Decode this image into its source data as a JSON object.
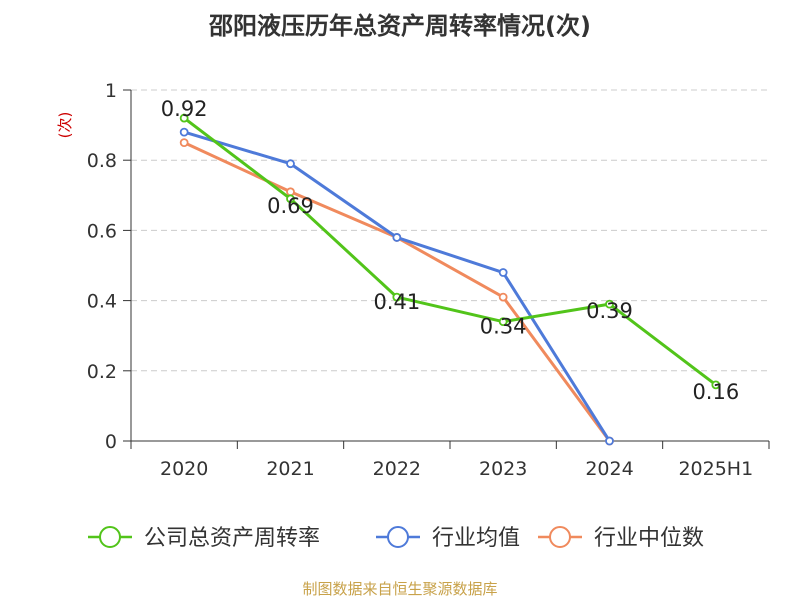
{
  "chart_data": {
    "type": "line",
    "title": "邵阳液压历年总资产周转率情况(次)",
    "ylabel": "(次)",
    "categories": [
      "2020",
      "2021",
      "2022",
      "2023",
      "2024",
      "2025H1"
    ],
    "ylim": [
      0,
      1
    ],
    "yticks": [
      "0",
      "0.2",
      "0.4",
      "0.6",
      "0.8",
      "1"
    ],
    "grid": true,
    "legend_position": "bottom",
    "series": [
      {
        "name": "公司总资产周转率",
        "color": "#52c41a",
        "values": [
          0.92,
          0.69,
          0.41,
          0.34,
          0.39,
          0.16
        ],
        "labels": [
          "0.92",
          "0.69",
          "0.41",
          "0.34",
          "0.39",
          "0.16"
        ]
      },
      {
        "name": "行业均值",
        "color": "#4e7ad9",
        "values": [
          0.88,
          0.79,
          0.58,
          0.48,
          0,
          null
        ]
      },
      {
        "name": "行业中位数",
        "color": "#f08a5d",
        "values": [
          0.85,
          0.71,
          0.58,
          0.41,
          0,
          null
        ]
      }
    ]
  },
  "source": "制图数据来自恒生聚源数据库"
}
